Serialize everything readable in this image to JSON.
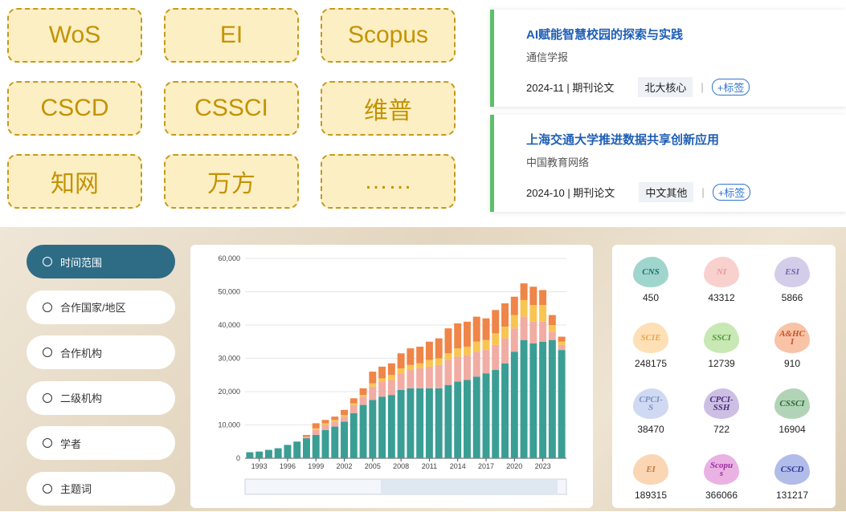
{
  "tags": [
    "WoS",
    "EI",
    "Scopus",
    "CSCD",
    "CSSCI",
    "维普",
    "知网",
    "万方",
    "……"
  ],
  "papers": [
    {
      "title": "AI赋能智慧校园的探索与实践",
      "source": "通信学报",
      "meta": "2024-11 | 期刊论文",
      "tag": "北大核心",
      "action": "+标签"
    },
    {
      "title": "上海交通大学推进数据共享创新应用",
      "source": "中国教育网络",
      "meta": "2024-10 | 期刊论文",
      "tag": "中文其他",
      "action": "+标签"
    }
  ],
  "menu": [
    "时间范围",
    "合作国家/地区",
    "合作机构",
    "二级机构",
    "学者",
    "主题词"
  ],
  "badges": [
    {
      "label": "CNS",
      "count": "450",
      "bg": "#9fd5cd",
      "fg": "#1e6e6a"
    },
    {
      "label": "NI",
      "count": "43312",
      "bg": "#f8d0cd",
      "fg": "#e59a9a"
    },
    {
      "label": "ESI",
      "count": "5866",
      "bg": "#d3cdea",
      "fg": "#6f66b0"
    },
    {
      "label": "SCIE",
      "count": "248175",
      "bg": "#fde0b5",
      "fg": "#e8a64a"
    },
    {
      "label": "SSCI",
      "count": "12739",
      "bg": "#c8e8b4",
      "fg": "#4e9a3a"
    },
    {
      "label": "A&HCI",
      "count": "910",
      "bg": "#f8c3a6",
      "fg": "#c8522a"
    },
    {
      "label": "CPCI-S",
      "count": "38470",
      "bg": "#cfd9f1",
      "fg": "#7d8fc8"
    },
    {
      "label": "CPCI-SSH",
      "count": "722",
      "bg": "#cdbfe4",
      "fg": "#4a2e7a"
    },
    {
      "label": "CSSCI",
      "count": "16904",
      "bg": "#b1d4b6",
      "fg": "#2c6b3a"
    },
    {
      "label": "EI",
      "count": "189315",
      "bg": "#fad6b4",
      "fg": "#c87a3a"
    },
    {
      "label": "Scopus",
      "count": "366066",
      "bg": "#e9b2e3",
      "fg": "#9a2aa0"
    },
    {
      "label": "CSCD",
      "count": "131217",
      "bg": "#b2bce9",
      "fg": "#2a3a9a"
    }
  ],
  "chart": {
    "type": "stacked-bar",
    "categories": [
      null,
      "1993",
      null,
      null,
      "1996",
      null,
      null,
      "1999",
      null,
      null,
      "2002",
      null,
      null,
      "2005",
      null,
      null,
      "2008",
      null,
      null,
      "2011",
      null,
      null,
      "2014",
      null,
      null,
      "2017",
      null,
      null,
      "2020",
      null,
      null,
      "2023",
      null,
      null
    ],
    "series": [
      {
        "color": "#3a9e95",
        "values": [
          1800,
          2000,
          2500,
          3000,
          4000,
          5000,
          6000,
          7000,
          8500,
          9500,
          11000,
          13500,
          16000,
          17500,
          18500,
          19000,
          20500,
          21000,
          21000,
          21000,
          21000,
          22000,
          23000,
          23500,
          24500,
          25500,
          26500,
          28500,
          32000,
          35500,
          34500,
          35000,
          35500,
          32500
        ]
      },
      {
        "color": "#f1aca3",
        "values": [
          0,
          0,
          0,
          0,
          0,
          0,
          500,
          1500,
          1500,
          1500,
          1500,
          2500,
          2500,
          4000,
          4500,
          4500,
          5000,
          5500,
          6000,
          6500,
          7000,
          7500,
          7500,
          7500,
          7500,
          7000,
          7500,
          7500,
          7000,
          7000,
          6500,
          6000,
          2500,
          1500
        ]
      },
      {
        "color": "#f8c552",
        "values": [
          0,
          0,
          0,
          0,
          0,
          0,
          0,
          500,
          500,
          500,
          500,
          500,
          500,
          1000,
          1000,
          1500,
          1500,
          1500,
          1500,
          2000,
          2000,
          2000,
          2500,
          2500,
          3000,
          3000,
          3500,
          3500,
          4000,
          5000,
          5000,
          5000,
          2000,
          1000
        ]
      },
      {
        "color": "#ef8548",
        "values": [
          0,
          0,
          0,
          0,
          0,
          0,
          500,
          1500,
          1000,
          1000,
          1500,
          1500,
          2000,
          3500,
          3500,
          3500,
          4500,
          5000,
          5000,
          5500,
          6000,
          7500,
          7500,
          7500,
          7500,
          6500,
          7000,
          7000,
          5500,
          5000,
          5500,
          4500,
          3000,
          1500
        ]
      }
    ],
    "ylim": [
      0,
      60000
    ],
    "yticks": [
      0,
      {
        "value": 10000,
        "label": "10,000"
      },
      {
        "value": 20000,
        "label": "20,000"
      },
      {
        "value": 30000,
        "label": "30,000"
      },
      {
        "value": 40000,
        "label": "40,000"
      },
      {
        "value": 50000,
        "label": "50,000"
      },
      {
        "value": 60000,
        "label": "60,000"
      }
    ],
    "grid": true
  }
}
